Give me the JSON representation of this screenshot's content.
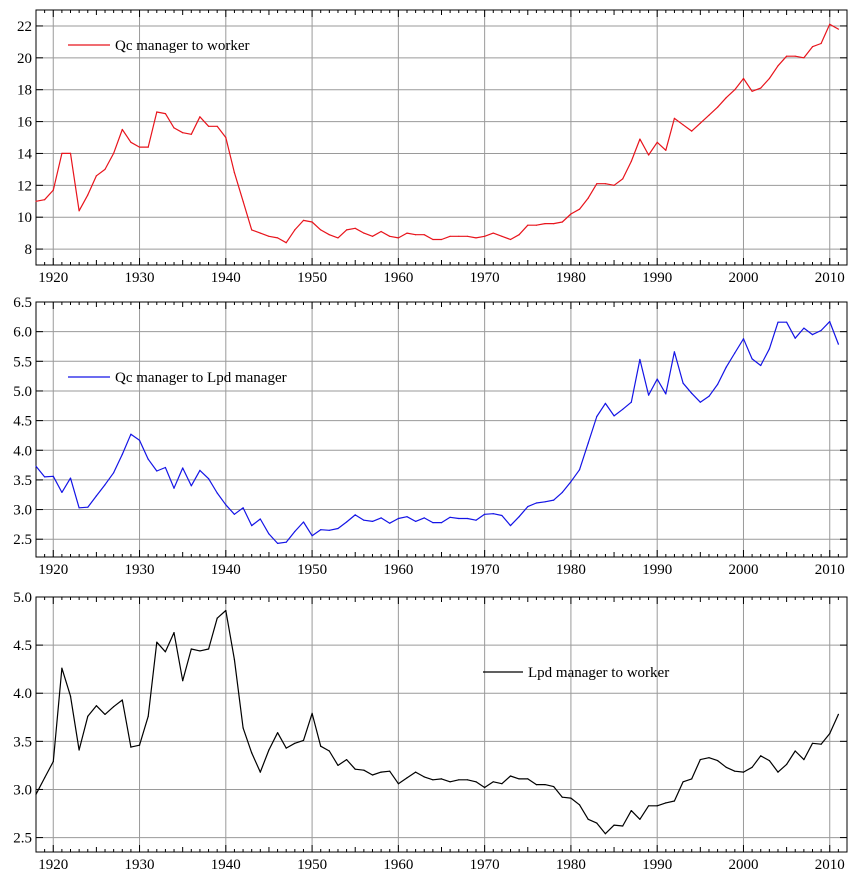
{
  "chart_data": [
    {
      "type": "line",
      "title": "",
      "xlabel": "",
      "ylabel": "",
      "xlim": [
        1918,
        2012
      ],
      "ylim": [
        7,
        23
      ],
      "xticks": [
        1920,
        1930,
        1940,
        1950,
        1960,
        1970,
        1980,
        1990,
        2000,
        2010
      ],
      "yticks": [
        8,
        10,
        12,
        14,
        16,
        18,
        20,
        22
      ],
      "ytick_labels": [
        "8",
        "10",
        "12",
        "14",
        "16",
        "18",
        "20",
        "22"
      ],
      "grid": true,
      "legend_position": "top-left",
      "series": [
        {
          "name": "Qc manager to worker",
          "color": "#e8141c",
          "x": [
            1918,
            1919,
            1920,
            1921,
            1922,
            1923,
            1924,
            1925,
            1926,
            1927,
            1928,
            1929,
            1930,
            1931,
            1932,
            1933,
            1934,
            1935,
            1936,
            1937,
            1938,
            1939,
            1940,
            1941,
            1942,
            1943,
            1944,
            1945,
            1946,
            1947,
            1948,
            1949,
            1950,
            1951,
            1952,
            1953,
            1954,
            1955,
            1956,
            1957,
            1958,
            1959,
            1960,
            1961,
            1962,
            1963,
            1964,
            1965,
            1966,
            1967,
            1968,
            1969,
            1970,
            1971,
            1972,
            1973,
            1974,
            1975,
            1976,
            1977,
            1978,
            1979,
            1980,
            1981,
            1982,
            1983,
            1984,
            1985,
            1986,
            1987,
            1988,
            1989,
            1990,
            1991,
            1992,
            1993,
            1994,
            1995,
            1996,
            1997,
            1998,
            1999,
            2000,
            2001,
            2002,
            2003,
            2004,
            2005,
            2006,
            2007,
            2008,
            2009,
            2010,
            2011
          ],
          "values": [
            11.0,
            11.1,
            11.7,
            14.0,
            14.0,
            10.4,
            11.4,
            12.6,
            13.0,
            14.0,
            15.5,
            14.7,
            14.4,
            14.4,
            16.6,
            16.5,
            15.6,
            15.3,
            15.2,
            16.3,
            15.7,
            15.7,
            15.0,
            12.8,
            11.0,
            9.2,
            9.0,
            8.8,
            8.7,
            8.4,
            9.2,
            9.8,
            9.7,
            9.2,
            8.9,
            8.7,
            9.2,
            9.3,
            9.0,
            8.8,
            9.1,
            8.8,
            8.7,
            9.0,
            8.9,
            8.9,
            8.6,
            8.6,
            8.8,
            8.8,
            8.8,
            8.7,
            8.8,
            9.0,
            8.8,
            8.6,
            8.9,
            9.5,
            9.5,
            9.6,
            9.6,
            9.7,
            10.2,
            10.5,
            11.2,
            12.1,
            12.1,
            12.0,
            12.4,
            13.5,
            14.9,
            13.9,
            14.7,
            14.2,
            16.2,
            15.8,
            15.4,
            15.9,
            16.4,
            16.9,
            17.5,
            18.0,
            18.7,
            17.9,
            18.1,
            18.7,
            19.5,
            20.1,
            20.1,
            20.0,
            20.7,
            20.9,
            22.1,
            21.8
          ]
        }
      ]
    },
    {
      "type": "line",
      "title": "",
      "xlabel": "",
      "ylabel": "",
      "xlim": [
        1918,
        2012
      ],
      "ylim": [
        2.2,
        6.5
      ],
      "xticks": [
        1920,
        1930,
        1940,
        1950,
        1960,
        1970,
        1980,
        1990,
        2000,
        2010
      ],
      "yticks": [
        2.5,
        3.0,
        3.5,
        4.0,
        4.5,
        5.0,
        5.5,
        6.0,
        6.5
      ],
      "ytick_labels": [
        "2.5",
        "3.0",
        "3.5",
        "4.0",
        "4.5",
        "5.0",
        "5.5",
        "6.0",
        "6.5"
      ],
      "grid": true,
      "legend_position": "middle-left",
      "series": [
        {
          "name": "Qc manager to Lpd manager",
          "color": "#1414e6",
          "x": [
            1918,
            1919,
            1920,
            1921,
            1922,
            1923,
            1924,
            1925,
            1926,
            1927,
            1928,
            1929,
            1930,
            1931,
            1932,
            1933,
            1934,
            1935,
            1936,
            1937,
            1938,
            1939,
            1940,
            1941,
            1942,
            1943,
            1944,
            1945,
            1946,
            1947,
            1948,
            1949,
            1950,
            1951,
            1952,
            1953,
            1954,
            1955,
            1956,
            1957,
            1958,
            1959,
            1960,
            1961,
            1962,
            1963,
            1964,
            1965,
            1966,
            1967,
            1968,
            1969,
            1970,
            1971,
            1972,
            1973,
            1974,
            1975,
            1976,
            1977,
            1978,
            1979,
            1980,
            1981,
            1982,
            1983,
            1984,
            1985,
            1986,
            1987,
            1988,
            1989,
            1990,
            1991,
            1992,
            1993,
            1994,
            1995,
            1996,
            1997,
            1998,
            1999,
            2000,
            2001,
            2002,
            2003,
            2004,
            2005,
            2006,
            2007,
            2008,
            2009,
            2010,
            2011
          ],
          "values": [
            3.73,
            3.55,
            3.56,
            3.29,
            3.53,
            3.03,
            3.04,
            3.23,
            3.42,
            3.62,
            3.93,
            4.27,
            4.17,
            3.85,
            3.65,
            3.71,
            3.36,
            3.7,
            3.4,
            3.66,
            3.52,
            3.28,
            3.08,
            2.92,
            3.03,
            2.73,
            2.84,
            2.59,
            2.43,
            2.45,
            2.63,
            2.79,
            2.56,
            2.66,
            2.65,
            2.68,
            2.79,
            2.91,
            2.82,
            2.8,
            2.86,
            2.77,
            2.85,
            2.88,
            2.8,
            2.86,
            2.78,
            2.78,
            2.87,
            2.85,
            2.85,
            2.82,
            2.92,
            2.93,
            2.9,
            2.73,
            2.88,
            3.05,
            3.11,
            3.13,
            3.16,
            3.29,
            3.47,
            3.67,
            4.12,
            4.57,
            4.79,
            4.58,
            4.69,
            4.81,
            5.53,
            4.93,
            5.2,
            4.95,
            5.66,
            5.13,
            4.96,
            4.81,
            4.91,
            5.11,
            5.4,
            5.64,
            5.88,
            5.54,
            5.43,
            5.71,
            6.16,
            6.16,
            5.89,
            6.06,
            5.95,
            6.02,
            6.17,
            5.79
          ]
        }
      ]
    },
    {
      "type": "line",
      "title": "",
      "xlabel": "",
      "ylabel": "",
      "xlim": [
        1918,
        2012
      ],
      "ylim": [
        2.35,
        5.0
      ],
      "xticks": [
        1920,
        1930,
        1940,
        1950,
        1960,
        1970,
        1980,
        1990,
        2000,
        2010
      ],
      "yticks": [
        2.5,
        3.0,
        3.5,
        4.0,
        4.5,
        5.0
      ],
      "ytick_labels": [
        "2.5",
        "3.0",
        "3.5",
        "4.0",
        "4.5",
        "5.0"
      ],
      "grid": true,
      "legend_position": "middle-right",
      "series": [
        {
          "name": "Lpd manager to worker",
          "color": "#000000",
          "x": [
            1918,
            1919,
            1920,
            1921,
            1922,
            1923,
            1924,
            1925,
            1926,
            1927,
            1928,
            1929,
            1930,
            1931,
            1932,
            1933,
            1934,
            1935,
            1936,
            1937,
            1938,
            1939,
            1940,
            1941,
            1942,
            1943,
            1944,
            1945,
            1946,
            1947,
            1948,
            1949,
            1950,
            1951,
            1952,
            1953,
            1954,
            1955,
            1956,
            1957,
            1958,
            1959,
            1960,
            1961,
            1962,
            1963,
            1964,
            1965,
            1966,
            1967,
            1968,
            1969,
            1970,
            1971,
            1972,
            1973,
            1974,
            1975,
            1976,
            1977,
            1978,
            1979,
            1980,
            1981,
            1982,
            1983,
            1984,
            1985,
            1986,
            1987,
            1988,
            1989,
            1990,
            1991,
            1992,
            1993,
            1994,
            1995,
            1996,
            1997,
            1998,
            1999,
            2000,
            2001,
            2002,
            2003,
            2004,
            2005,
            2006,
            2007,
            2008,
            2009,
            2010,
            2011
          ],
          "values": [
            2.95,
            3.12,
            3.29,
            4.26,
            3.97,
            3.41,
            3.76,
            3.87,
            3.78,
            3.86,
            3.93,
            3.44,
            3.46,
            3.76,
            4.53,
            4.43,
            4.63,
            4.13,
            4.46,
            4.44,
            4.46,
            4.78,
            4.86,
            4.35,
            3.64,
            3.38,
            3.18,
            3.41,
            3.59,
            3.43,
            3.48,
            3.51,
            3.79,
            3.45,
            3.4,
            3.25,
            3.31,
            3.21,
            3.2,
            3.15,
            3.18,
            3.19,
            3.06,
            3.12,
            3.18,
            3.13,
            3.1,
            3.11,
            3.08,
            3.1,
            3.1,
            3.08,
            3.02,
            3.08,
            3.06,
            3.14,
            3.11,
            3.11,
            3.05,
            3.05,
            3.03,
            2.92,
            2.91,
            2.84,
            2.69,
            2.65,
            2.54,
            2.63,
            2.62,
            2.78,
            2.69,
            2.83,
            2.83,
            2.86,
            2.88,
            3.08,
            3.11,
            3.31,
            3.33,
            3.3,
            3.23,
            3.19,
            3.18,
            3.23,
            3.35,
            3.3,
            3.18,
            3.26,
            3.4,
            3.31,
            3.48,
            3.47,
            3.58,
            3.78
          ]
        }
      ]
    }
  ]
}
